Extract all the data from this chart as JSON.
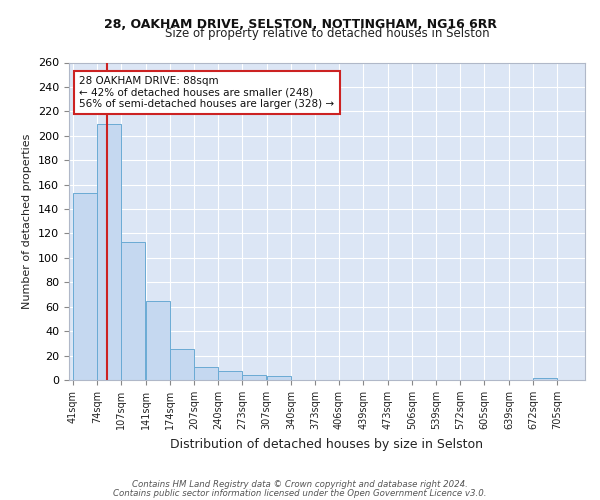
{
  "title_line1": "28, OAKHAM DRIVE, SELSTON, NOTTINGHAM, NG16 6RR",
  "title_line2": "Size of property relative to detached houses in Selston",
  "xlabel": "Distribution of detached houses by size in Selston",
  "ylabel": "Number of detached properties",
  "bar_labels": [
    "41sqm",
    "74sqm",
    "107sqm",
    "141sqm",
    "174sqm",
    "207sqm",
    "240sqm",
    "273sqm",
    "307sqm",
    "340sqm",
    "373sqm",
    "406sqm",
    "439sqm",
    "473sqm",
    "506sqm",
    "539sqm",
    "572sqm",
    "605sqm",
    "639sqm",
    "672sqm",
    "705sqm"
  ],
  "bar_values": [
    153,
    210,
    113,
    65,
    25,
    11,
    7,
    4,
    3,
    0,
    0,
    0,
    0,
    0,
    0,
    0,
    0,
    0,
    0,
    2,
    0
  ],
  "bar_color": "#c5d8f0",
  "bar_edge_color": "#6aaad4",
  "fig_bg_color": "#ffffff",
  "ax_bg_color": "#dce6f5",
  "grid_color": "#ffffff",
  "vline_color": "#cc2222",
  "annotation_text": "28 OAKHAM DRIVE: 88sqm\n← 42% of detached houses are smaller (248)\n56% of semi-detached houses are larger (328) →",
  "annotation_box_color": "#ffffff",
  "annotation_box_edge": "#cc2222",
  "ylim": [
    0,
    260
  ],
  "yticks": [
    0,
    20,
    40,
    60,
    80,
    100,
    120,
    140,
    160,
    180,
    200,
    220,
    240,
    260
  ],
  "footer_line1": "Contains HM Land Registry data © Crown copyright and database right 2024.",
  "footer_line2": "Contains public sector information licensed under the Open Government Licence v3.0.",
  "vline_x": 88,
  "bin_starts": [
    41,
    74,
    107,
    141,
    174,
    207,
    240,
    273,
    307,
    340,
    373,
    406,
    439,
    473,
    506,
    539,
    572,
    605,
    639,
    672,
    705
  ],
  "bin_width": 33
}
